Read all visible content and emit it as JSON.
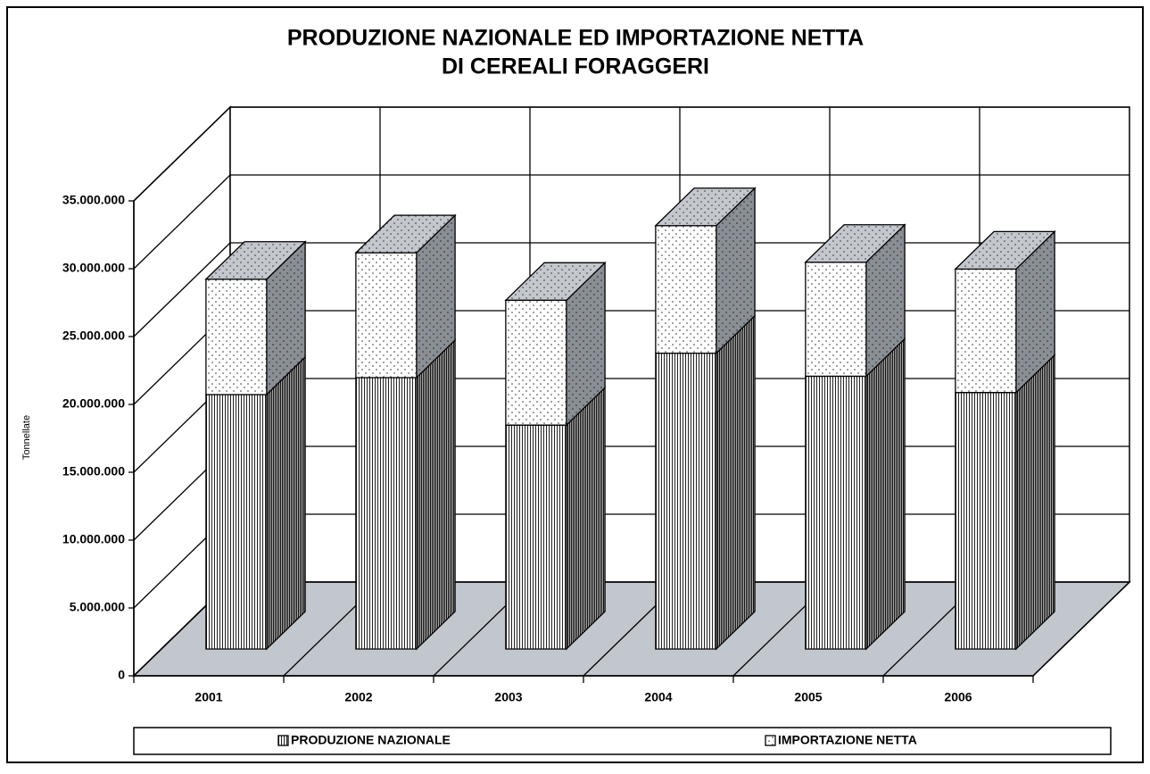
{
  "chart_data": {
    "type": "bar3d-stacked",
    "title": [
      "PRODUZIONE NAZIONALE ED IMPORTAZIONE NETTA",
      "DI CEREALI FORAGGERI"
    ],
    "y_label": "Tonnellate",
    "categories": [
      "2001",
      "2002",
      "2003",
      "2004",
      "2005",
      "2006"
    ],
    "series": [
      {
        "name": "PRODUZIONE NAZIONALE",
        "pattern": "vertical-lines",
        "values": [
          18750000,
          20000000,
          16500000,
          21800000,
          20100000,
          18900000
        ]
      },
      {
        "name": "IMPORTAZIONE NETTA",
        "pattern": "dots",
        "values": [
          8500000,
          9200000,
          9200000,
          9400000,
          8400000,
          9100000
        ]
      }
    ],
    "ylim": [
      0,
      35000000
    ],
    "yticks": [
      0,
      {
        "value": 5000000,
        "label": "5.000.000"
      },
      {
        "value": 10000000,
        "label": "10.000.000"
      },
      {
        "value": 15000000,
        "label": "15.000.000"
      },
      {
        "value": 20000000,
        "label": "20.000.000"
      },
      {
        "value": 25000000,
        "label": "25.000.000"
      },
      {
        "value": 30000000,
        "label": "30.000.000"
      },
      {
        "value": 35000000,
        "label": "35.000.000"
      }
    ],
    "grid": true,
    "legend": "bottom"
  }
}
